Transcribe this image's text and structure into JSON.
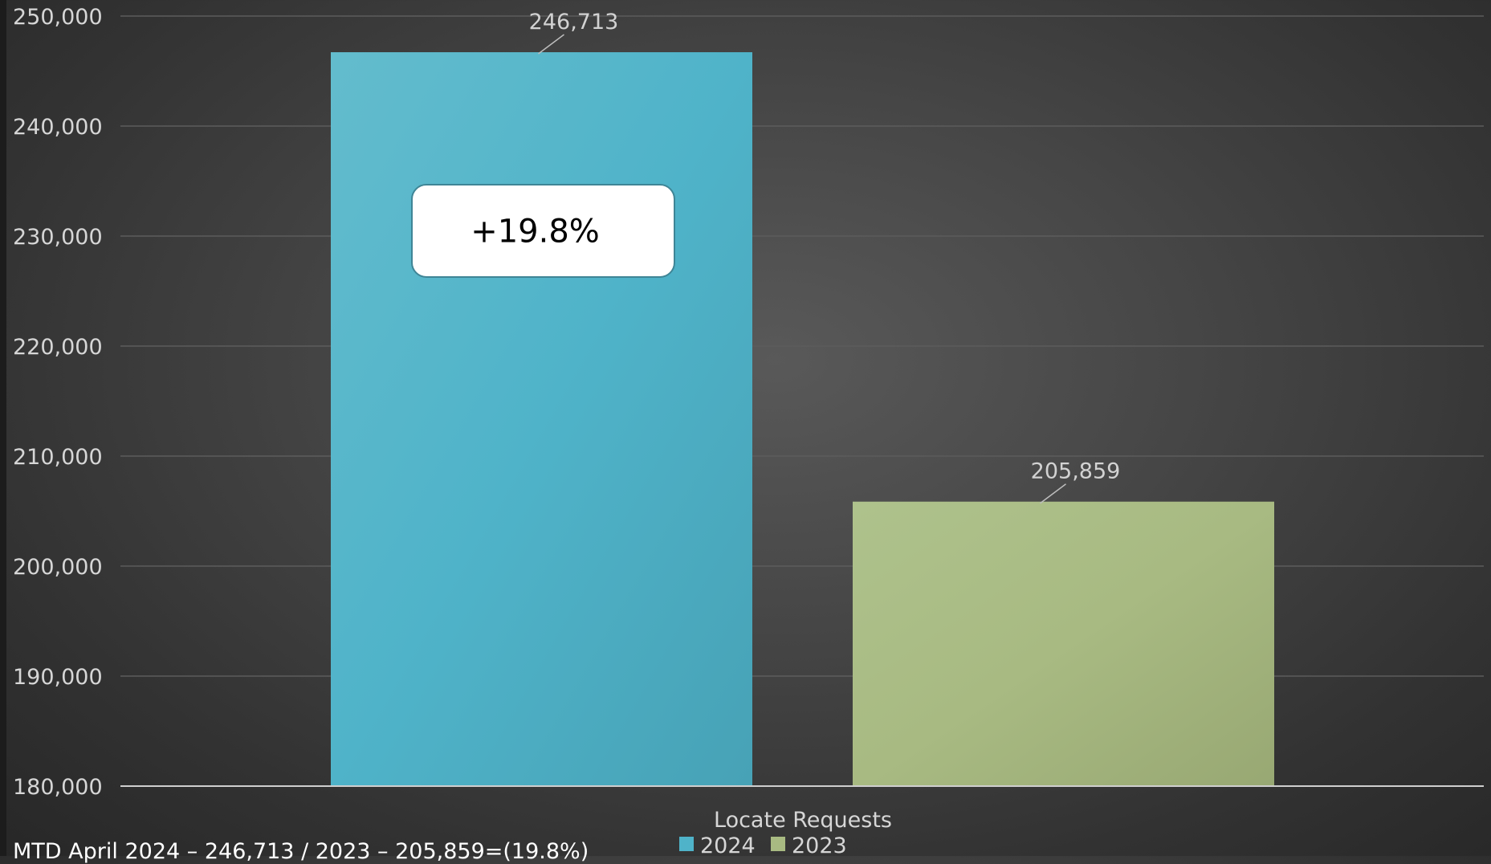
{
  "chart_data": {
    "type": "bar",
    "title": "",
    "xlabel": "Locate Requests",
    "ylabel": "",
    "ylim": [
      180000,
      250000
    ],
    "yticks": [
      180000,
      190000,
      200000,
      210000,
      220000,
      230000,
      240000,
      250000
    ],
    "ytick_labels": [
      "180,000",
      "190,000",
      "200,000",
      "210,000",
      "220,000",
      "230,000",
      "240,000",
      "250,000"
    ],
    "grid": true,
    "legend_position": "bottom",
    "categories": [
      "Locate Requests"
    ],
    "series": [
      {
        "name": "2024",
        "values": [
          246713
        ],
        "label": "246,713",
        "color": "#4fb3c9"
      },
      {
        "name": "2023",
        "values": [
          205859
        ],
        "label": "205,859",
        "color": "#a8ba82"
      }
    ],
    "annotations": [
      {
        "text": "+19.8%",
        "series": "2024"
      }
    ]
  },
  "footer": {
    "text": "MTD April 2024 – 246,713 / 2023 – 205,859=(19.8%)"
  }
}
